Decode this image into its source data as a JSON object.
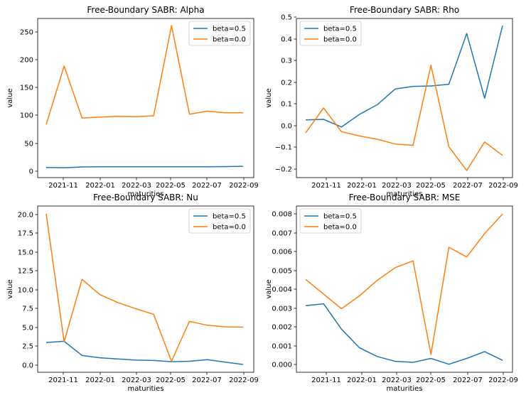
{
  "chart_data": [
    {
      "type": "line",
      "title": "Free-Boundary SABR: Alpha",
      "xlabel": "maturities",
      "ylabel": "value",
      "x_ticks": [
        "2021-11",
        "2022-01",
        "2022-03",
        "2022-05",
        "2022-07",
        "2022-09"
      ],
      "y_ticks": [
        "0",
        "50",
        "100",
        "150",
        "200",
        "250"
      ],
      "ylim": [
        -14,
        277
      ],
      "legend": "top-right",
      "x": [
        0,
        1,
        2,
        3,
        4,
        5,
        6,
        7,
        8,
        9,
        10,
        11
      ],
      "series": [
        {
          "name": "beta=0.5",
          "color": "#1f77b4",
          "values": [
            4.5,
            4,
            5.5,
            5.7,
            5.8,
            5.8,
            5.9,
            5.9,
            5.9,
            5.9,
            6.2,
            6.6
          ]
        },
        {
          "name": "beta=0.0",
          "color": "#ff7f0e",
          "values": [
            83,
            190,
            95,
            96.5,
            98,
            97.5,
            99,
            264,
            102,
            107.5,
            104.5,
            104.5
          ]
        }
      ]
    },
    {
      "type": "line",
      "title": "Free-Boundary SABR: Rho",
      "xlabel": "maturities",
      "ylabel": "value",
      "x_ticks": [
        "2021-11",
        "2022-01",
        "2022-03",
        "2022-05",
        "2022-07",
        "2022-09"
      ],
      "y_ticks": [
        "−0.2",
        "−0.1",
        "0.0",
        "0.1",
        "0.2",
        "0.3",
        "0.4",
        "0.5"
      ],
      "ylim": [
        -0.233,
        0.505
      ],
      "legend": "top-left",
      "x": [
        0,
        1,
        2,
        3,
        4,
        5,
        6,
        7,
        8,
        9,
        10,
        11
      ],
      "series": [
        {
          "name": "beta=0.5",
          "color": "#1f77b4",
          "values": [
            0.035,
            0.037,
            0.002,
            0.06,
            0.105,
            0.178,
            0.19,
            0.192,
            0.2,
            0.435,
            0.135,
            0.472
          ]
        },
        {
          "name": "beta=0.0",
          "color": "#ff7f0e",
          "values": [
            -0.025,
            0.09,
            -0.02,
            -0.04,
            -0.055,
            -0.077,
            -0.083,
            0.288,
            -0.09,
            -0.2,
            -0.068,
            -0.13
          ]
        }
      ]
    },
    {
      "type": "line",
      "title": "Free-Boundary SABR: Nu",
      "xlabel": "maturities",
      "ylabel": "value",
      "x_ticks": [
        "2021-11",
        "2022-01",
        "2022-03",
        "2022-05",
        "2022-07",
        "2022-09"
      ],
      "y_ticks": [
        "0.0",
        "2.5",
        "5.0",
        "7.5",
        "10.0",
        "12.5",
        "15.0",
        "17.5",
        "20.0"
      ],
      "ylim": [
        -0.4,
        20.8
      ],
      "legend": "top-right",
      "x": [
        0,
        1,
        2,
        3,
        4,
        5,
        6,
        7,
        8,
        9,
        10,
        11
      ],
      "series": [
        {
          "name": "beta=0.5",
          "color": "#1f77b4",
          "values": [
            3.4,
            3.55,
            1.75,
            1.45,
            1.3,
            1.15,
            1.1,
            0.95,
            1.0,
            1.2,
            0.9,
            0.6
          ]
        },
        {
          "name": "beta=0.0",
          "color": "#ff7f0e",
          "values": [
            19.8,
            3.5,
            11.45,
            9.5,
            8.5,
            7.7,
            7.0,
            1.0,
            6.1,
            5.6,
            5.4,
            5.35
          ]
        }
      ]
    },
    {
      "type": "line",
      "title": "Free-Boundary SABR: MSE",
      "xlabel": "maturities",
      "ylabel": "value",
      "x_ticks": [
        "2021-11",
        "2022-01",
        "2022-03",
        "2022-05",
        "2022-07",
        "2022-09"
      ],
      "y_ticks": [
        "0.000",
        "0.001",
        "0.002",
        "0.003",
        "0.004",
        "0.005",
        "0.006",
        "0.007",
        "0.008"
      ],
      "ylim": [
        -0.00021,
        0.00831
      ],
      "legend": "top-left",
      "x": [
        0,
        1,
        2,
        3,
        4,
        5,
        6,
        7,
        8,
        9,
        10,
        11
      ],
      "series": [
        {
          "name": "beta=0.5",
          "color": "#1f77b4",
          "values": [
            0.0032,
            0.0033,
            0.002,
            0.00105,
            0.0006,
            0.00035,
            0.0003,
            0.0005,
            0.0002,
            0.0005,
            0.00085,
            0.0004
          ]
        },
        {
          "name": "beta=0.0",
          "color": "#ff7f0e",
          "values": [
            0.00455,
            0.0038,
            0.00305,
            0.0037,
            0.0045,
            0.00515,
            0.0055,
            0.0007,
            0.0062,
            0.0057,
            0.0069,
            0.0079
          ]
        }
      ]
    }
  ]
}
